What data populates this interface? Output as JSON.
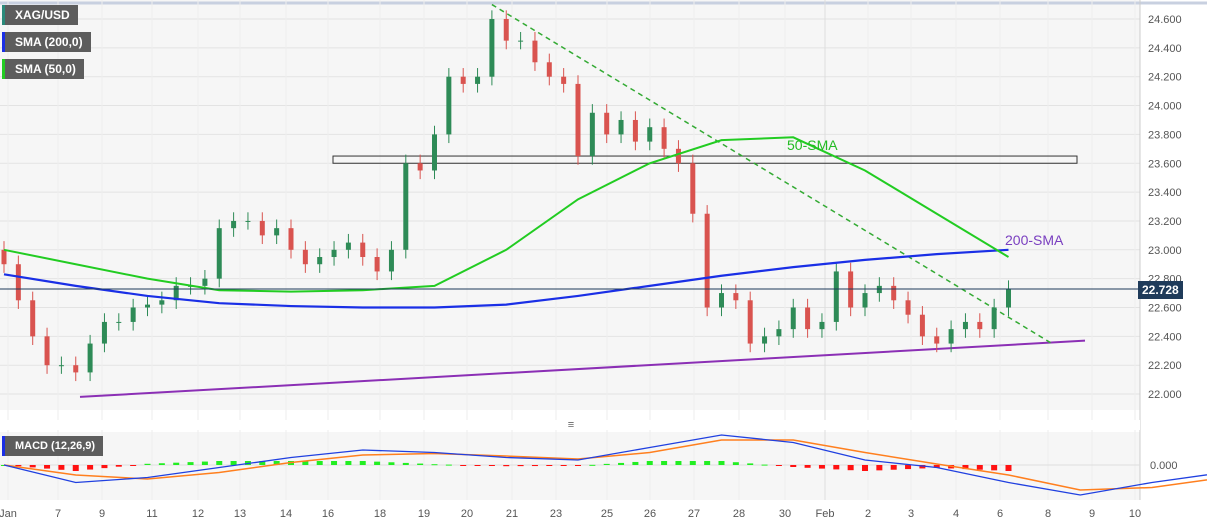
{
  "legend": {
    "symbol": "XAG/USD",
    "sma200": "SMA (200,0)",
    "sma50": "SMA (50,0)",
    "macd": "MACD (12,26,9)"
  },
  "colors": {
    "up": "#2e8b57",
    "down": "#d9534f",
    "sma200": "#1a2fe6",
    "sma50": "#22cc22",
    "trend_dashed": "#33aa33",
    "support": "#8b2fb5",
    "macd": "#2040e0",
    "signal": "#ff7f1e",
    "hist_up": "#22ee22",
    "hist_down": "#ff1111"
  },
  "annotations": {
    "sma50": "50-SMA",
    "sma200": "200-SMA"
  },
  "chart_data": {
    "type": "candlestick",
    "price_axis": {
      "ticks": [
        "24.600",
        "24.400",
        "24.200",
        "24.000",
        "23.800",
        "23.600",
        "23.400",
        "23.200",
        "23.000",
        "22.800",
        "22.600",
        "22.400",
        "22.200",
        "22.000"
      ],
      "ylim": [
        21.9,
        24.72
      ]
    },
    "current_price": "22.728",
    "x_ticks": [
      "Jan",
      "7",
      "9",
      "11",
      "12",
      "13",
      "14",
      "16",
      "18",
      "19",
      "20",
      "21",
      "23",
      "25",
      "26",
      "27",
      "28",
      "30",
      "Feb",
      "2",
      "3",
      "4",
      "6",
      "8",
      "9",
      "10"
    ],
    "closes": [
      22.9,
      22.65,
      22.4,
      22.2,
      22.2,
      22.15,
      22.35,
      22.5,
      22.5,
      22.6,
      22.62,
      22.65,
      22.75,
      22.75,
      22.8,
      23.15,
      23.2,
      23.2,
      23.1,
      23.15,
      23.0,
      22.9,
      22.95,
      23.0,
      23.05,
      22.95,
      22.85,
      23.0,
      23.6,
      23.55,
      23.8,
      24.2,
      24.15,
      24.2,
      24.6,
      24.45,
      24.45,
      24.3,
      24.2,
      24.15,
      23.65,
      23.95,
      23.8,
      23.9,
      23.75,
      23.85,
      23.7,
      23.6,
      23.25,
      22.6,
      22.7,
      22.65,
      22.35,
      22.4,
      22.45,
      22.6,
      22.45,
      22.5,
      22.85,
      22.6,
      22.7,
      22.75,
      22.65,
      22.55,
      22.4,
      22.35,
      22.45,
      22.5,
      22.45,
      22.6,
      22.728
    ],
    "sma200_every5": [
      22.83,
      22.75,
      22.68,
      22.63,
      22.61,
      22.6,
      22.6,
      22.62,
      22.68,
      22.75,
      22.82,
      22.88,
      22.93,
      22.97,
      23.0
    ],
    "sma50_every5": [
      23.0,
      22.9,
      22.8,
      22.72,
      22.71,
      22.72,
      22.75,
      23.0,
      23.35,
      23.6,
      23.76,
      23.78,
      23.55,
      23.25,
      22.95
    ],
    "resistance_zone": [
      23.6,
      23.65
    ],
    "macd": {
      "zero_label": "0.000",
      "macd_every5": [
        0,
        -0.35,
        -0.25,
        -0.05,
        0.15,
        0.3,
        0.25,
        0.15,
        0.1,
        0.35,
        0.6,
        0.45,
        0.1,
        -0.05,
        -0.35,
        -0.6,
        -0.35,
        -0.15,
        -0.08,
        -0.05
      ],
      "signal_every5": [
        0,
        -0.2,
        -0.28,
        -0.15,
        0.05,
        0.2,
        0.23,
        0.18,
        0.12,
        0.25,
        0.5,
        0.5,
        0.25,
        0.02,
        -0.2,
        -0.5,
        -0.45,
        -0.25,
        -0.12,
        -0.08
      ]
    }
  }
}
